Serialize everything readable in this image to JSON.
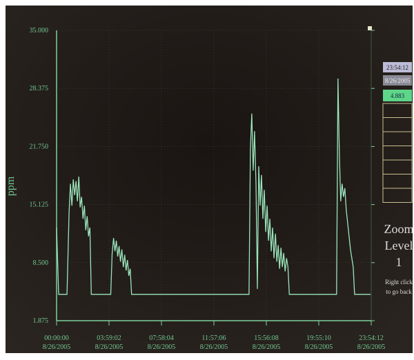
{
  "chart_data": {
    "type": "line",
    "y_label": "ppm",
    "color": "#9be6bd",
    "grid": true,
    "ylim": [
      1.875,
      35
    ],
    "yticks": [
      1.875,
      {
        "value": 8.5,
        "label": "8.500"
      },
      15.125,
      {
        "value": 21.75,
        "label": "21.750"
      },
      28.375,
      {
        "value": 35,
        "label": "35.000"
      }
    ],
    "xlim": [
      0,
      86052
    ],
    "xticks": [
      {
        "value": 0,
        "label": [
          "00:00:00",
          "8/26/2005"
        ]
      },
      {
        "value": 14342,
        "label": [
          "03:59:02",
          "8/26/2005"
        ]
      },
      {
        "value": 28684,
        "label": [
          "07:58:04",
          "8/26/2005"
        ]
      },
      {
        "value": 43026,
        "label": [
          "11:57:06",
          "8/26/2005"
        ]
      },
      {
        "value": 57368,
        "label": [
          "15:56:08",
          "8/26/2005"
        ]
      },
      {
        "value": 71710,
        "label": [
          "19:55:10",
          "8/26/2005"
        ]
      },
      {
        "value": 86052,
        "label": [
          "23:54:12",
          "8/26/2005"
        ]
      }
    ],
    "x": [
      0,
      570,
      2850,
      3420,
      3800,
      4180,
      4560,
      4940,
      5320,
      5700,
      6080,
      6460,
      6840,
      7220,
      7600,
      7980,
      8360,
      8740,
      9120,
      9500,
      14820,
      15200,
      15580,
      15960,
      16340,
      16720,
      17100,
      17480,
      17860,
      18240,
      18620,
      19000,
      19380,
      19760,
      20140,
      20520,
      52630,
      53010,
      53390,
      53770,
      54150,
      54530,
      54910,
      55290,
      55670,
      56050,
      56430,
      56810,
      57190,
      57570,
      57950,
      58330,
      58710,
      59090,
      59470,
      59850,
      60230,
      60610,
      60990,
      61370,
      61750,
      62130,
      62510,
      62890,
      63270,
      63650,
      76570,
      76950,
      77330,
      77710,
      78090,
      78470,
      78850,
      79230,
      79610,
      79990,
      80370,
      80750,
      81130,
      81510,
      85880
    ],
    "values": [
      12.5,
      4.883,
      4.883,
      14.2,
      17.5,
      15,
      18,
      16.2,
      17.8,
      15.5,
      18.3,
      14.8,
      16,
      13.5,
      15,
      12.2,
      13.8,
      11.5,
      12.5,
      4.883,
      4.883,
      9.5,
      11.3,
      9.8,
      11,
      9.2,
      10.4,
      8.6,
      10,
      8,
      9.4,
      7.6,
      8.8,
      7,
      7.8,
      4.883,
      4.883,
      21.5,
      25.5,
      19,
      23.5,
      17.5,
      5.5,
      19.5,
      15,
      18.5,
      13.5,
      16.8,
      12,
      15,
      11,
      13.5,
      9.8,
      12.5,
      9,
      11.8,
      8.6,
      10.5,
      7.8,
      10.2,
      8,
      9.6,
      7.5,
      9,
      8,
      4.883,
      4.883,
      29.5,
      21,
      15.5,
      17.5,
      16,
      17,
      14.5,
      13,
      11.5,
      10,
      9,
      8,
      4.883,
      4.883
    ]
  },
  "panel": {
    "time": "23:54:12",
    "date": "8/26/2005",
    "value": "4.883",
    "zoom": [
      "Zoom",
      "Level",
      "1"
    ],
    "hint": [
      "Right click",
      "to go back"
    ]
  }
}
